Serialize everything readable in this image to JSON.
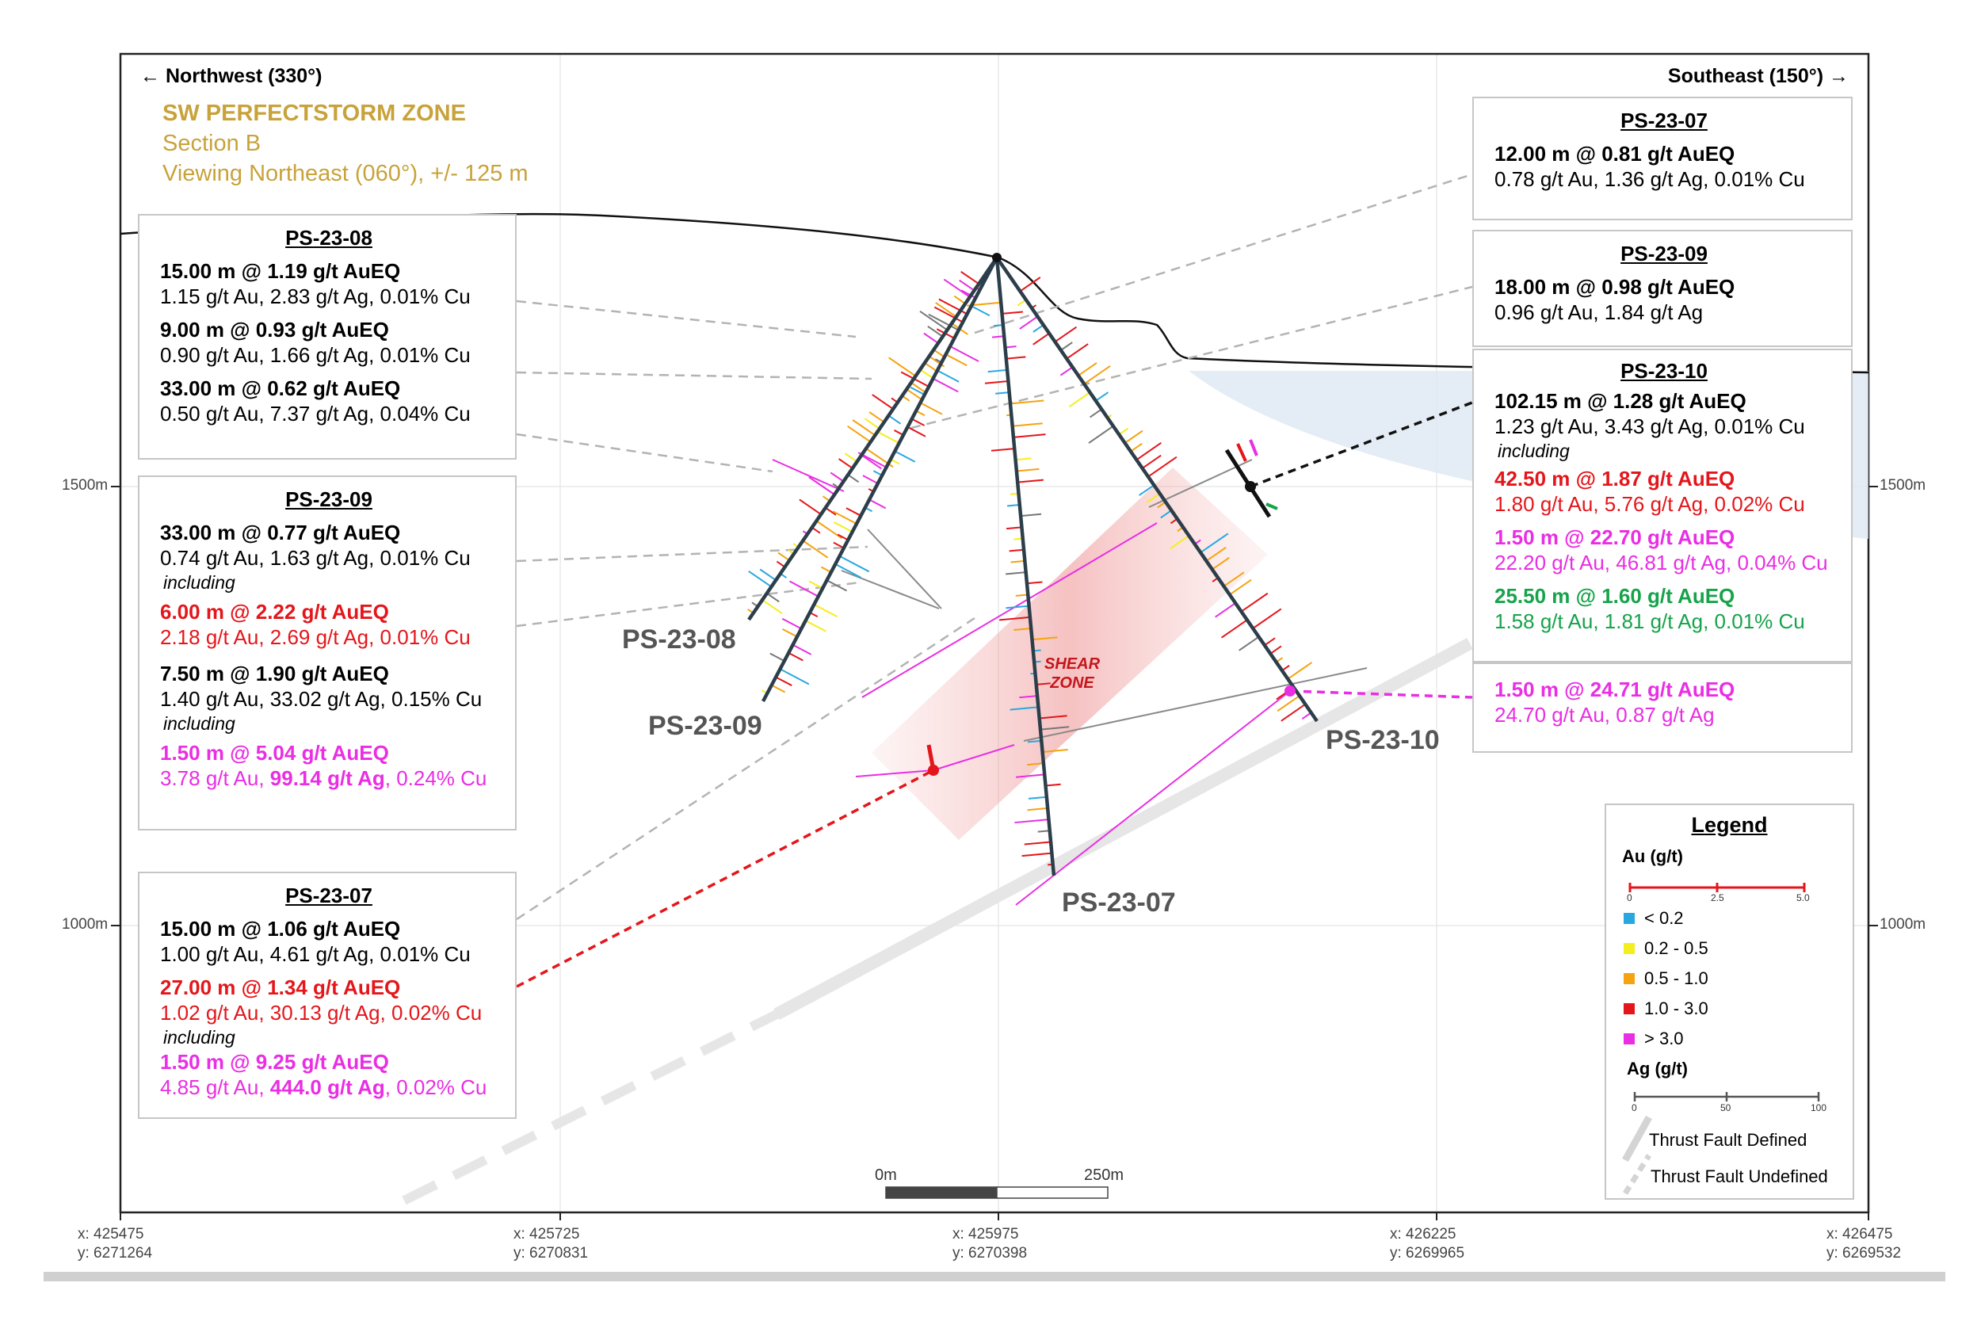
{
  "header": {
    "left": "← Northwest (330°)",
    "right": "Southeast (150°) →",
    "title": "SW PERFECTSTORM ZONE",
    "section": "Section B",
    "view": "Viewing Northeast (060°), +/- 125 m"
  },
  "elevations": {
    "e1500": "1500m",
    "e1000": "1000m"
  },
  "coords": [
    {
      "x": "x: 425475",
      "y": "y: 6271264"
    },
    {
      "x": "x: 425725",
      "y": "y: 6270831"
    },
    {
      "x": "x: 425975",
      "y": "y: 6270398"
    },
    {
      "x": "x: 426225",
      "y": "y: 6269965"
    },
    {
      "x": "x: 426475",
      "y": "y: 6269532"
    }
  ],
  "scale": {
    "start": "0m",
    "end": "250m"
  },
  "holes": {
    "h08": "PS-23-08",
    "h09": "PS-23-09",
    "h07": "PS-23-07",
    "h10": "PS-23-10"
  },
  "shear_zone": {
    "l1": "SHEAR",
    "l2": "ZONE"
  },
  "boxes": {
    "ps08": {
      "title": "PS-23-08",
      "i": [
        {
          "a": "15.00 m @ 1.19 g/t AuEQ",
          "b": "1.15 g/t Au, 2.83 g/t Ag, 0.01% Cu"
        },
        {
          "a": "9.00 m @ 0.93 g/t AuEQ",
          "b": "0.90 g/t Au, 1.66 g/t Ag, 0.01% Cu"
        },
        {
          "a": "33.00 m @ 0.62 g/t AuEQ",
          "b": "0.50 g/t Au, 7.37 g/t Ag, 0.04% Cu"
        }
      ]
    },
    "ps09l": {
      "title": "PS-23-09",
      "a1": "33.00 m @ 0.77 g/t AuEQ",
      "b1": "0.74 g/t Au, 1.63 g/t Ag, 0.01% Cu",
      "inc1": "including",
      "a2": "6.00 m @ 2.22 g/t AuEQ",
      "b2": "2.18 g/t Au, 2.69 g/t Ag, 0.01% Cu",
      "a3": "7.50 m @ 1.90 g/t AuEQ",
      "b3": "1.40 g/t Au, 33.02 g/t Ag, 0.15% Cu",
      "inc2": "including",
      "a4": "1.50 m @ 5.04 g/t AuEQ",
      "b4a": "3.78 g/t Au, ",
      "b4b": "99.14 g/t Ag",
      "b4c": ", 0.24% Cu"
    },
    "ps07l": {
      "title": "PS-23-07",
      "a1": "15.00 m @ 1.06 g/t AuEQ",
      "b1": "1.00 g/t Au, 4.61 g/t Ag, 0.01% Cu",
      "a2": "27.00 m @ 1.34 g/t AuEQ",
      "b2": "1.02 g/t Au, 30.13 g/t Ag, 0.02% Cu",
      "inc": "including",
      "a3": "1.50 m @ 9.25 g/t AuEQ",
      "b3a": "4.85 g/t Au, ",
      "b3b": "444.0 g/t Ag",
      "b3c": ", 0.02% Cu"
    },
    "ps07r": {
      "title": "PS-23-07",
      "a": "12.00 m @ 0.81 g/t AuEQ",
      "b": "0.78 g/t Au, 1.36 g/t Ag, 0.01% Cu"
    },
    "ps09r": {
      "title": "PS-23-09",
      "a": "18.00 m @ 0.98 g/t AuEQ",
      "b": "0.96 g/t Au, 1.84 g/t Ag"
    },
    "ps10": {
      "title": "PS-23-10",
      "a1": "102.15 m @ 1.28 g/t AuEQ",
      "b1": "1.23 g/t Au, 3.43 g/t Ag, 0.01% Cu",
      "inc": "including",
      "a2": "42.50 m @ 1.87 g/t AuEQ",
      "b2": "1.80 g/t Au, 5.76 g/t Ag, 0.02% Cu",
      "a3": "1.50 m @ 22.70 g/t AuEQ",
      "b3": "22.20 g/t Au, 46.81 g/t Ag, 0.04% Cu",
      "a4": "25.50 m @ 1.60 g/t AuEQ",
      "b4": "1.58 g/t Au, 1.81 g/t Ag, 0.01% Cu"
    },
    "ps10b": {
      "a": "1.50 m @ 24.71 g/t AuEQ",
      "b": "24.70 g/t Au, 0.87 g/t Ag"
    }
  },
  "legend": {
    "title": "Legend",
    "au_label": "Au (g/t)",
    "au_ticks": [
      "0",
      "2.5",
      "5.0"
    ],
    "classes": [
      {
        "label": "< 0.2",
        "color": "#29a8e0"
      },
      {
        "label": "0.2 - 0.5",
        "color": "#f5ee1f"
      },
      {
        "label": "0.5 - 1.0",
        "color": "#f5a30f"
      },
      {
        "label": "1.0 - 3.0",
        "color": "#e4161b"
      },
      {
        "label": "> 3.0",
        "color": "#e92ee3"
      }
    ],
    "ag_label": "Ag (g/t)",
    "ag_ticks": [
      "0",
      "50",
      "100"
    ],
    "fault_defined": "Thrust Fault Defined",
    "fault_undefined": "Thrust Fault Undefined"
  }
}
